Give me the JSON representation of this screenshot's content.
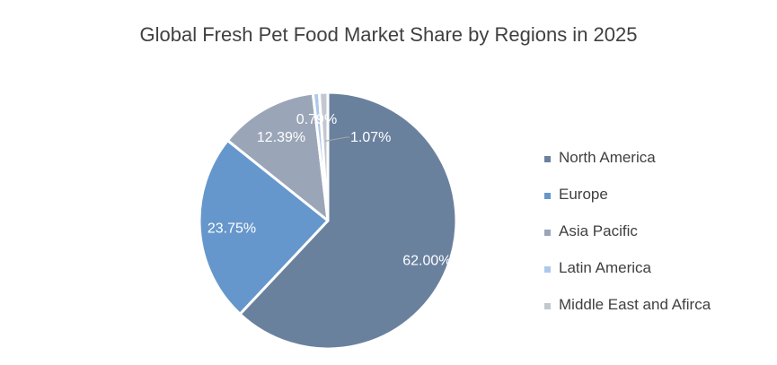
{
  "chart_data": {
    "type": "pie",
    "title": "Global Fresh Pet Food Market Share by Regions in 2025",
    "categories": [
      "North America",
      "Europe",
      "Asia Pacific",
      "Latin America",
      "Middle East and Afirca"
    ],
    "values": [
      62.0,
      23.75,
      12.39,
      0.79,
      1.07
    ],
    "labels": [
      "62.00%",
      "23.75%",
      "12.39%",
      "0.79%",
      "1.07%"
    ],
    "colors": [
      "#6a819e",
      "#6697cc",
      "#9aa6b8",
      "#aec8e8",
      "#c3c8d0"
    ],
    "legend": "right"
  }
}
